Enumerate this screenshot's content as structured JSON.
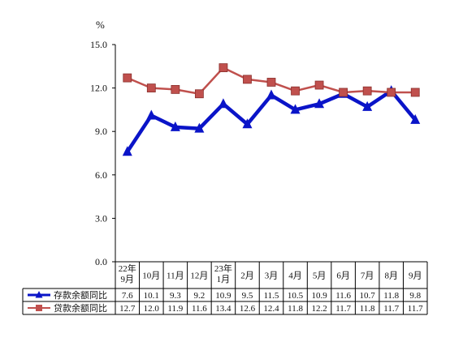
{
  "chart_data": {
    "type": "line",
    "unit": "%",
    "ylim": [
      0,
      15
    ],
    "yticks": [
      "0.0",
      "3.0",
      "6.0",
      "9.0",
      "12.0",
      "15.0"
    ],
    "categories": [
      [
        "22年",
        "9月"
      ],
      [
        "10月"
      ],
      [
        "11月"
      ],
      [
        "12月"
      ],
      [
        "23年",
        "1月"
      ],
      [
        "2月"
      ],
      [
        "3月"
      ],
      [
        "4月"
      ],
      [
        "5月"
      ],
      [
        "6月"
      ],
      [
        "7月"
      ],
      [
        "8月"
      ],
      [
        "9月"
      ]
    ],
    "series": [
      {
        "name": "存款余额同比",
        "color": "#0a14c8",
        "marker": "triangle",
        "values": [
          7.6,
          10.1,
          9.3,
          9.2,
          10.9,
          9.5,
          11.5,
          10.5,
          10.9,
          11.6,
          10.7,
          11.8,
          9.8
        ],
        "labels": [
          "7.6",
          "10.1",
          "9.3",
          "9.2",
          "10.9",
          "9.5",
          "11.5",
          "10.5",
          "10.9",
          "11.6",
          "10.7",
          "11.8",
          "9.8"
        ]
      },
      {
        "name": "贷款余额同比",
        "color": "#c0504d",
        "marker": "square",
        "values": [
          12.7,
          12.0,
          11.9,
          11.6,
          13.4,
          12.6,
          12.4,
          11.8,
          12.2,
          11.7,
          11.8,
          11.7,
          11.7
        ],
        "labels": [
          "12.7",
          "12.0",
          "11.9",
          "11.6",
          "13.4",
          "12.6",
          "12.4",
          "11.8",
          "12.2",
          "11.7",
          "11.8",
          "11.7",
          "11.7"
        ]
      }
    ],
    "legend": "data-table-below",
    "grid": false
  }
}
